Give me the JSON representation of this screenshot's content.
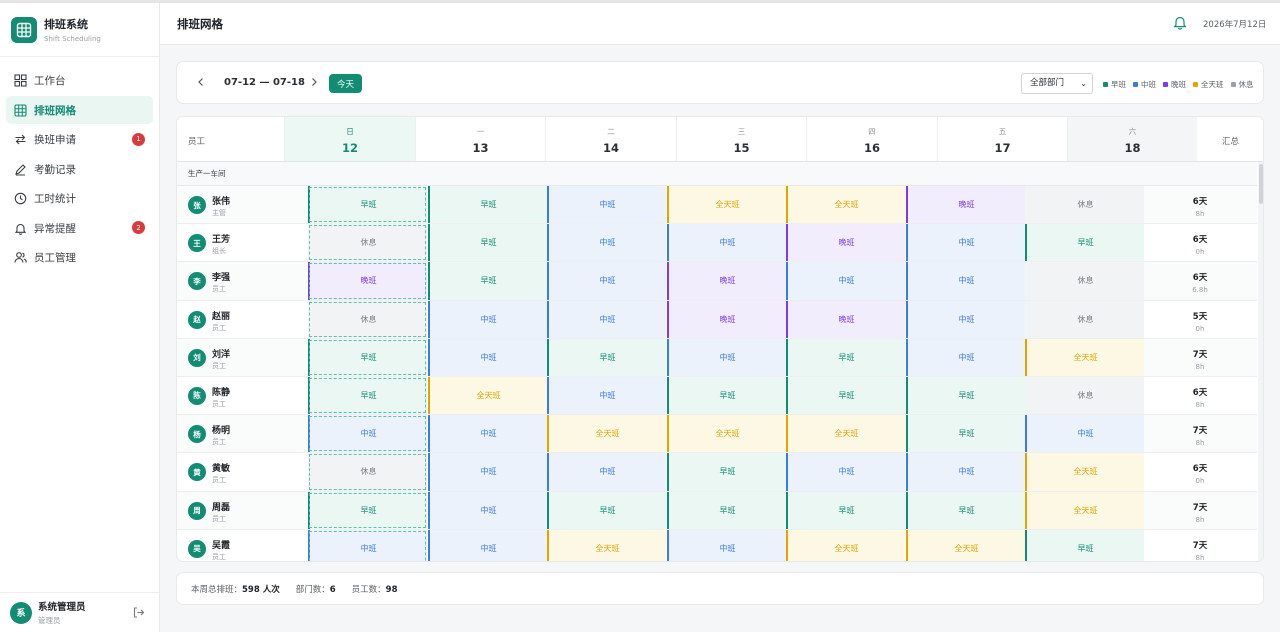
{
  "app": {
    "title": "排班系统",
    "subtitle": "Shift Scheduling"
  },
  "nav": [
    {
      "label": "工作台",
      "icon": "dashboard-icon",
      "active": false,
      "badge": ""
    },
    {
      "label": "排班网格",
      "icon": "grid-icon",
      "active": true,
      "badge": ""
    },
    {
      "label": "换班申请",
      "icon": "swap-icon",
      "active": false,
      "badge": "1"
    },
    {
      "label": "考勤记录",
      "icon": "pen-icon",
      "active": false,
      "badge": ""
    },
    {
      "label": "工时统计",
      "icon": "clock-icon",
      "active": false,
      "badge": ""
    },
    {
      "label": "异常提醒",
      "icon": "bell-icon",
      "active": false,
      "badge": "2"
    },
    {
      "label": "员工管理",
      "icon": "users-icon",
      "active": false,
      "badge": ""
    }
  ],
  "user": {
    "avatar": "系",
    "name": "系统管理员",
    "role": "管理员"
  },
  "header": {
    "title": "排班网格",
    "date": "2026年7月12日"
  },
  "toolbar": {
    "range": "07-12 — 07-18",
    "today_label": "今天",
    "department": "全部部门",
    "legend": [
      {
        "label": "早班",
        "color": "#138c74"
      },
      {
        "label": "中班",
        "color": "#3b7be6"
      },
      {
        "label": "晚班",
        "color": "#7c3aed"
      },
      {
        "label": "全天班",
        "color": "#e3a400"
      },
      {
        "label": "休息",
        "color": "#9aa0a6"
      }
    ]
  },
  "grid": {
    "employee_header": "员工",
    "summary_header": "汇总",
    "days": [
      {
        "weekday": "日",
        "date": "12"
      },
      {
        "weekday": "一",
        "date": "13"
      },
      {
        "weekday": "二",
        "date": "14"
      },
      {
        "weekday": "三",
        "date": "15"
      },
      {
        "weekday": "四",
        "date": "16"
      },
      {
        "weekday": "五",
        "date": "17"
      },
      {
        "weekday": "六",
        "date": "18"
      }
    ],
    "department": "生产一车间",
    "rows": [
      {
        "avatar": "张",
        "name": "张伟",
        "role": "主管",
        "shifts": [
          "早班",
          "早班",
          "中班",
          "全天班",
          "全天班",
          "晚班",
          "休息"
        ],
        "days": "6天",
        "hours": "8h"
      },
      {
        "avatar": "王",
        "name": "王芳",
        "role": "组长",
        "shifts": [
          "休息",
          "早班",
          "中班",
          "中班",
          "晚班",
          "中班",
          "早班"
        ],
        "days": "6天",
        "hours": "0h"
      },
      {
        "avatar": "李",
        "name": "李强",
        "role": "员工",
        "shifts": [
          "晚班",
          "早班",
          "中班",
          "晚班",
          "中班",
          "中班",
          "休息"
        ],
        "days": "6天",
        "hours": "6.8h"
      },
      {
        "avatar": "赵",
        "name": "赵丽",
        "role": "员工",
        "shifts": [
          "休息",
          "中班",
          "中班",
          "晚班",
          "晚班",
          "中班",
          "休息"
        ],
        "days": "5天",
        "hours": "0h"
      },
      {
        "avatar": "刘",
        "name": "刘洋",
        "role": "员工",
        "shifts": [
          "早班",
          "中班",
          "早班",
          "中班",
          "早班",
          "中班",
          "全天班"
        ],
        "days": "7天",
        "hours": "8h"
      },
      {
        "avatar": "陈",
        "name": "陈静",
        "role": "员工",
        "shifts": [
          "早班",
          "全天班",
          "中班",
          "早班",
          "早班",
          "早班",
          "休息"
        ],
        "days": "6天",
        "hours": "8h"
      },
      {
        "avatar": "杨",
        "name": "杨明",
        "role": "员工",
        "shifts": [
          "中班",
          "中班",
          "全天班",
          "全天班",
          "全天班",
          "早班",
          "中班"
        ],
        "days": "7天",
        "hours": "8h"
      },
      {
        "avatar": "黄",
        "name": "黄敏",
        "role": "员工",
        "shifts": [
          "休息",
          "中班",
          "中班",
          "早班",
          "中班",
          "中班",
          "全天班"
        ],
        "days": "6天",
        "hours": "0h"
      },
      {
        "avatar": "周",
        "name": "周磊",
        "role": "员工",
        "shifts": [
          "早班",
          "中班",
          "早班",
          "早班",
          "早班",
          "早班",
          "全天班"
        ],
        "days": "7天",
        "hours": "8h"
      },
      {
        "avatar": "吴",
        "name": "吴霞",
        "role": "员工",
        "shifts": [
          "中班",
          "中班",
          "全天班",
          "中班",
          "全天班",
          "全天班",
          "早班"
        ],
        "days": "7天",
        "hours": "8h"
      }
    ]
  },
  "footer": {
    "total_label": "本周总排班：",
    "total_value": "598 人次",
    "dept_label": "部门数：",
    "dept_value": "6",
    "emp_label": "员工数：",
    "emp_value": "98"
  }
}
